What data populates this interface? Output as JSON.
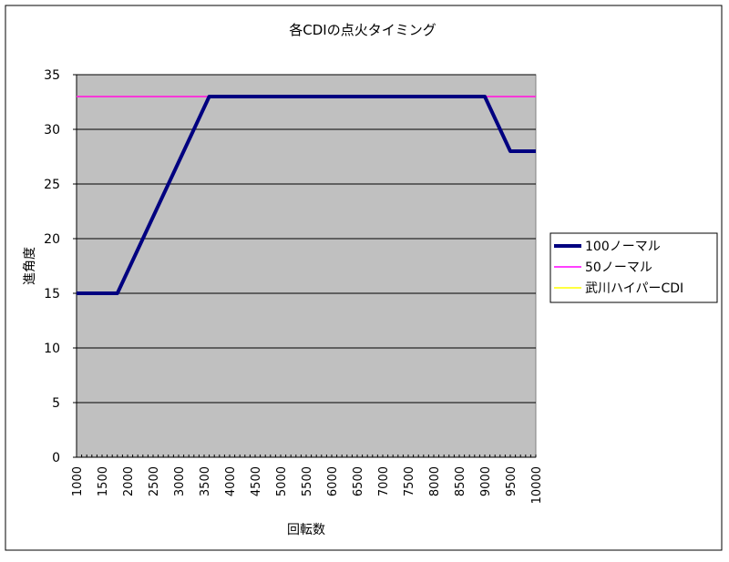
{
  "chart_data": {
    "type": "line",
    "title": "各CDIの点火タイミング",
    "xlabel": "回転数",
    "ylabel": "進角度",
    "ylim": [
      0,
      35
    ],
    "yticks": [
      0,
      5,
      10,
      15,
      20,
      25,
      30,
      35
    ],
    "xlim": [
      1000,
      10000
    ],
    "xticks": [
      1000,
      1500,
      2000,
      2500,
      3000,
      3500,
      4000,
      4500,
      5000,
      5500,
      6000,
      6500,
      7000,
      7500,
      8000,
      8500,
      9000,
      9500,
      10000
    ],
    "grid": true,
    "legend_position": "right",
    "plot_background": "#c0c0c0",
    "series": [
      {
        "name": "100ノーマル",
        "color": "#000080",
        "points": [
          [
            1000,
            15
          ],
          [
            1800,
            15
          ],
          [
            3600,
            33
          ],
          [
            9000,
            33
          ],
          [
            9500,
            28
          ],
          [
            10000,
            28
          ]
        ]
      },
      {
        "name": "50ノーマル",
        "color": "#ff00ff",
        "points": [
          [
            1000,
            33
          ],
          [
            10000,
            33
          ]
        ]
      },
      {
        "name": "武川ハイパーCDI",
        "color": "#ffff00",
        "points": [
          [
            1000,
            33
          ],
          [
            10000,
            33
          ]
        ]
      }
    ]
  }
}
